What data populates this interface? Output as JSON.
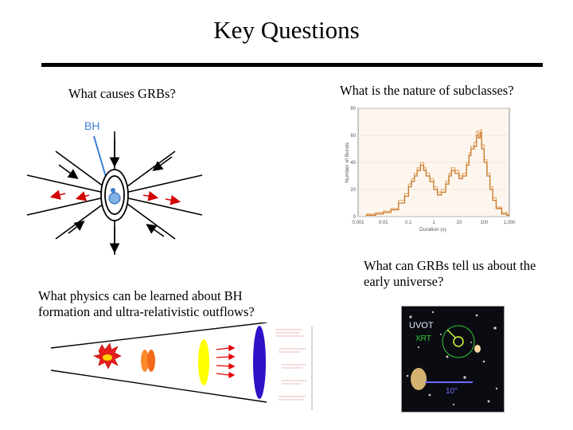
{
  "title": "Key Questions",
  "questions": {
    "causes": "What causes GRBs?",
    "subclasses": "What is the nature of subclasses?",
    "early_universe": "What can GRBs tell us about the early universe?",
    "physics": "What physics can be learned about BH formation and ultra-relativistic outflows?"
  },
  "bh_diagram": {
    "bh_label": "BH"
  },
  "chart_data": {
    "type": "line",
    "title": "",
    "xlabel": "Duration (s)",
    "ylabel": "Number of Bursts",
    "x_scale": "log",
    "xlim": [
      0.001,
      1000
    ],
    "ylim": [
      0,
      80
    ],
    "x_ticks": [
      "0.001",
      "0.01",
      "0.1",
      "1",
      "10",
      "100",
      "1,000"
    ],
    "y_ticks": [
      "0",
      "20",
      "40",
      "60",
      "80"
    ],
    "series": [
      {
        "x": [
          0.002,
          0.005,
          0.01,
          0.02,
          0.04,
          0.07,
          0.1,
          0.13,
          0.17,
          0.22,
          0.3,
          0.4,
          0.5,
          0.7,
          1,
          1.4,
          2,
          3,
          4,
          5,
          7,
          10,
          14,
          20,
          25,
          30,
          40,
          50,
          60,
          70,
          80,
          100,
          130,
          170,
          220,
          300,
          500,
          800
        ],
        "values": [
          1,
          2,
          3,
          5,
          10,
          15,
          22,
          26,
          30,
          34,
          38,
          34,
          30,
          26,
          20,
          16,
          18,
          24,
          30,
          34,
          32,
          28,
          30,
          38,
          45,
          50,
          52,
          60,
          58,
          62,
          50,
          40,
          30,
          20,
          12,
          6,
          2,
          1
        ]
      },
      {
        "x": [
          0.002,
          0.005,
          0.01,
          0.02,
          0.04,
          0.07,
          0.1,
          0.13,
          0.17,
          0.22,
          0.3,
          0.4,
          0.5,
          0.7,
          1,
          1.4,
          2,
          3,
          4,
          5,
          7,
          10,
          14,
          20,
          25,
          30,
          40,
          50,
          60,
          70,
          80,
          100,
          130,
          170,
          220,
          300,
          500,
          800
        ],
        "values": [
          2,
          3,
          4,
          6,
          12,
          17,
          24,
          28,
          32,
          36,
          40,
          36,
          32,
          28,
          22,
          18,
          20,
          26,
          32,
          36,
          34,
          30,
          32,
          40,
          47,
          52,
          55,
          63,
          61,
          64,
          53,
          42,
          32,
          22,
          14,
          7,
          3,
          1
        ]
      }
    ],
    "colors": {
      "series_a": "#c97a2a",
      "series_b": "#e7b27a",
      "background": "#fdf6ee"
    }
  },
  "deep_field": {
    "uvot_label": "UVOT",
    "xrt_label": "XRT",
    "scale_label": "10\""
  }
}
